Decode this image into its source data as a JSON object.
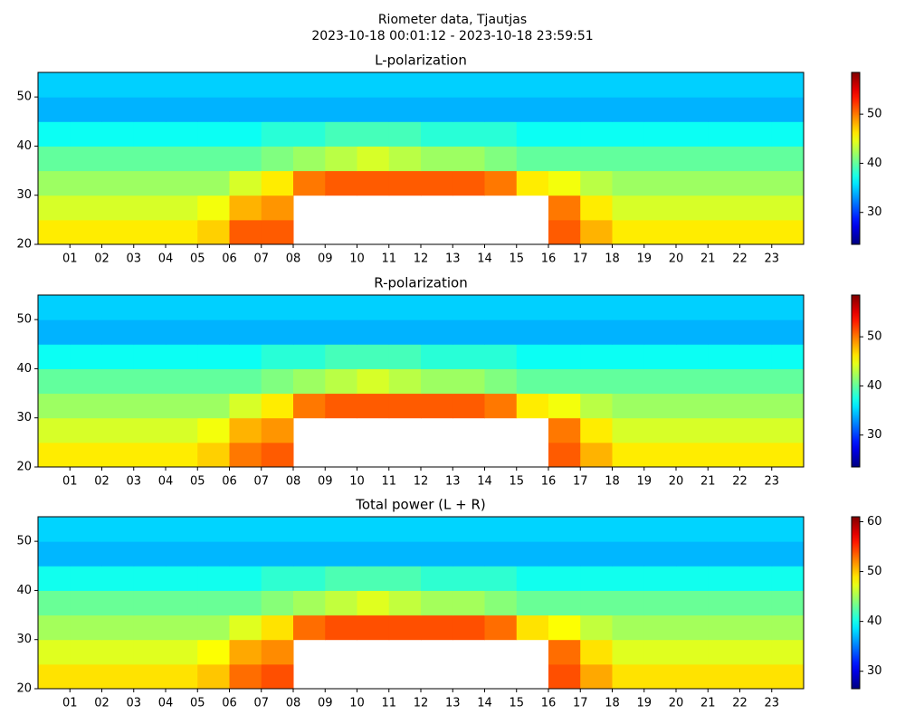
{
  "title": "Riometer data, Tjautjas",
  "subtitle": "2023-10-18 00:01:12 - 2023-10-18 23:59:51",
  "chart_data": [
    {
      "type": "heatmap",
      "title": "L-polarization",
      "colormap": "jet",
      "x": [
        0,
        1,
        2,
        3,
        4,
        5,
        6,
        7,
        8,
        9,
        10,
        11,
        12,
        13,
        14,
        15,
        16,
        17,
        18,
        19,
        20,
        21,
        22,
        23,
        24
      ],
      "y": [
        20,
        25,
        30,
        35,
        40,
        45,
        50,
        55
      ],
      "xlim": [
        0,
        24
      ],
      "ylim": [
        20,
        55
      ],
      "xticks": [
        {
          "value": 1,
          "label": "01"
        },
        {
          "value": 2,
          "label": "02"
        },
        {
          "value": 3,
          "label": "03"
        },
        {
          "value": 4,
          "label": "04"
        },
        {
          "value": 5,
          "label": "05"
        },
        {
          "value": 6,
          "label": "06"
        },
        {
          "value": 7,
          "label": "07"
        },
        {
          "value": 8,
          "label": "08"
        },
        {
          "value": 9,
          "label": "09"
        },
        {
          "value": 10,
          "label": "10"
        },
        {
          "value": 11,
          "label": "11"
        },
        {
          "value": 12,
          "label": "12"
        },
        {
          "value": 13,
          "label": "13"
        },
        {
          "value": 14,
          "label": "14"
        },
        {
          "value": 15,
          "label": "15"
        },
        {
          "value": 16,
          "label": "16"
        },
        {
          "value": 17,
          "label": "17"
        },
        {
          "value": 18,
          "label": "18"
        },
        {
          "value": 19,
          "label": "19"
        },
        {
          "value": 20,
          "label": "20"
        },
        {
          "value": 21,
          "label": "21"
        },
        {
          "value": 22,
          "label": "22"
        },
        {
          "value": 23,
          "label": "23"
        }
      ],
      "yticks": [
        20,
        30,
        40,
        50
      ],
      "clim": [
        23.5,
        58.5
      ],
      "cticks": [
        30,
        40,
        50
      ],
      "values": [
        [
          46,
          46,
          46,
          46,
          46,
          47,
          51,
          51,
          null,
          null,
          null,
          null,
          null,
          null,
          null,
          null,
          51,
          48,
          46,
          46,
          46,
          46,
          46,
          46
        ],
        [
          44,
          44,
          44,
          44,
          44,
          45,
          48,
          49,
          null,
          null,
          null,
          null,
          null,
          null,
          null,
          null,
          50,
          46,
          44,
          44,
          44,
          44,
          44,
          44
        ],
        [
          42,
          42,
          42,
          42,
          42,
          42,
          44,
          46,
          50,
          51,
          51,
          51,
          51,
          51,
          50,
          46,
          45,
          43,
          42,
          42,
          42,
          42,
          42,
          42
        ],
        [
          40,
          40,
          40,
          40,
          40,
          40,
          40,
          41,
          42,
          43,
          44,
          43,
          42,
          42,
          41,
          40,
          40,
          40,
          40,
          40,
          40,
          40,
          40,
          40
        ],
        [
          37,
          37,
          37,
          37,
          37,
          37,
          37,
          38,
          38,
          39,
          39,
          39,
          38,
          38,
          38,
          37,
          37,
          37,
          37,
          37,
          37,
          37,
          37,
          37
        ],
        [
          34,
          34,
          34,
          34,
          34,
          34,
          34,
          34,
          34,
          34,
          34,
          34,
          34,
          34,
          34,
          34,
          34,
          34,
          34,
          34,
          34,
          34,
          34,
          34
        ],
        [
          35,
          35,
          35,
          35,
          35,
          35,
          35,
          35,
          35,
          35,
          35,
          35,
          35,
          35,
          35,
          35,
          35,
          35,
          35,
          35,
          35,
          35,
          35,
          35
        ]
      ]
    },
    {
      "type": "heatmap",
      "title": "R-polarization",
      "colormap": "jet",
      "x": [
        0,
        1,
        2,
        3,
        4,
        5,
        6,
        7,
        8,
        9,
        10,
        11,
        12,
        13,
        14,
        15,
        16,
        17,
        18,
        19,
        20,
        21,
        22,
        23,
        24
      ],
      "y": [
        20,
        25,
        30,
        35,
        40,
        45,
        50,
        55
      ],
      "xlim": [
        0,
        24
      ],
      "ylim": [
        20,
        55
      ],
      "xticks": [
        {
          "value": 1,
          "label": "01"
        },
        {
          "value": 2,
          "label": "02"
        },
        {
          "value": 3,
          "label": "03"
        },
        {
          "value": 4,
          "label": "04"
        },
        {
          "value": 5,
          "label": "05"
        },
        {
          "value": 6,
          "label": "06"
        },
        {
          "value": 7,
          "label": "07"
        },
        {
          "value": 8,
          "label": "08"
        },
        {
          "value": 9,
          "label": "09"
        },
        {
          "value": 10,
          "label": "10"
        },
        {
          "value": 11,
          "label": "11"
        },
        {
          "value": 12,
          "label": "12"
        },
        {
          "value": 13,
          "label": "13"
        },
        {
          "value": 14,
          "label": "14"
        },
        {
          "value": 15,
          "label": "15"
        },
        {
          "value": 16,
          "label": "16"
        },
        {
          "value": 17,
          "label": "17"
        },
        {
          "value": 18,
          "label": "18"
        },
        {
          "value": 19,
          "label": "19"
        },
        {
          "value": 20,
          "label": "20"
        },
        {
          "value": 21,
          "label": "21"
        },
        {
          "value": 22,
          "label": "22"
        },
        {
          "value": 23,
          "label": "23"
        }
      ],
      "yticks": [
        20,
        30,
        40,
        50
      ],
      "clim": [
        23.5,
        58.5
      ],
      "cticks": [
        30,
        40,
        50
      ],
      "values": [
        [
          46,
          46,
          46,
          46,
          46,
          47,
          50,
          51,
          null,
          null,
          null,
          null,
          null,
          null,
          null,
          null,
          51,
          48,
          46,
          46,
          46,
          46,
          46,
          46
        ],
        [
          44,
          44,
          44,
          44,
          44,
          45,
          48,
          49,
          null,
          null,
          null,
          null,
          null,
          null,
          null,
          null,
          50,
          46,
          44,
          44,
          44,
          44,
          44,
          44
        ],
        [
          42,
          42,
          42,
          42,
          42,
          42,
          44,
          46,
          50,
          51,
          51,
          51,
          51,
          51,
          50,
          46,
          45,
          43,
          42,
          42,
          42,
          42,
          42,
          42
        ],
        [
          40,
          40,
          40,
          40,
          40,
          40,
          40,
          41,
          42,
          43,
          44,
          43,
          42,
          42,
          41,
          40,
          40,
          40,
          40,
          40,
          40,
          40,
          40,
          40
        ],
        [
          37,
          37,
          37,
          37,
          37,
          37,
          37,
          38,
          38,
          39,
          39,
          39,
          38,
          38,
          38,
          37,
          37,
          37,
          37,
          37,
          37,
          37,
          37,
          37
        ],
        [
          34,
          34,
          34,
          34,
          34,
          34,
          34,
          34,
          34,
          34,
          34,
          34,
          34,
          34,
          34,
          34,
          34,
          34,
          34,
          34,
          34,
          34,
          34,
          34
        ],
        [
          35,
          35,
          35,
          35,
          35,
          35,
          35,
          35,
          35,
          35,
          35,
          35,
          35,
          35,
          35,
          35,
          35,
          35,
          35,
          35,
          35,
          35,
          35,
          35
        ]
      ]
    },
    {
      "type": "heatmap",
      "title": "Total power (L + R)",
      "colormap": "jet",
      "x": [
        0,
        1,
        2,
        3,
        4,
        5,
        6,
        7,
        8,
        9,
        10,
        11,
        12,
        13,
        14,
        15,
        16,
        17,
        18,
        19,
        20,
        21,
        22,
        23,
        24
      ],
      "y": [
        20,
        25,
        30,
        35,
        40,
        45,
        50,
        55
      ],
      "xlim": [
        0,
        24
      ],
      "ylim": [
        20,
        55
      ],
      "xticks": [
        {
          "value": 1,
          "label": "01"
        },
        {
          "value": 2,
          "label": "02"
        },
        {
          "value": 3,
          "label": "03"
        },
        {
          "value": 4,
          "label": "04"
        },
        {
          "value": 5,
          "label": "05"
        },
        {
          "value": 6,
          "label": "06"
        },
        {
          "value": 7,
          "label": "07"
        },
        {
          "value": 8,
          "label": "08"
        },
        {
          "value": 9,
          "label": "09"
        },
        {
          "value": 10,
          "label": "10"
        },
        {
          "value": 11,
          "label": "11"
        },
        {
          "value": 12,
          "label": "12"
        },
        {
          "value": 13,
          "label": "13"
        },
        {
          "value": 14,
          "label": "14"
        },
        {
          "value": 15,
          "label": "15"
        },
        {
          "value": 16,
          "label": "16"
        },
        {
          "value": 17,
          "label": "17"
        },
        {
          "value": 18,
          "label": "18"
        },
        {
          "value": 19,
          "label": "19"
        },
        {
          "value": 20,
          "label": "20"
        },
        {
          "value": 21,
          "label": "21"
        },
        {
          "value": 22,
          "label": "22"
        },
        {
          "value": 23,
          "label": "23"
        }
      ],
      "yticks": [
        20,
        30,
        40,
        50
      ],
      "clim": [
        26.5,
        61
      ],
      "cticks": [
        30,
        40,
        50,
        60
      ],
      "values": [
        [
          49,
          49,
          49,
          49,
          49,
          50,
          53,
          54,
          null,
          null,
          null,
          null,
          null,
          null,
          null,
          null,
          54,
          51,
          49,
          49,
          49,
          49,
          49,
          49
        ],
        [
          47,
          47,
          47,
          47,
          47,
          48,
          51,
          52,
          null,
          null,
          null,
          null,
          null,
          null,
          null,
          null,
          53,
          49,
          47,
          47,
          47,
          47,
          47,
          47
        ],
        [
          45,
          45,
          45,
          45,
          45,
          45,
          47,
          49,
          53,
          54,
          54,
          54,
          54,
          54,
          53,
          49,
          48,
          46,
          45,
          45,
          45,
          45,
          45,
          45
        ],
        [
          43,
          43,
          43,
          43,
          43,
          43,
          43,
          44,
          45,
          46,
          47,
          46,
          45,
          45,
          44,
          43,
          43,
          43,
          43,
          43,
          43,
          43,
          43,
          43
        ],
        [
          40,
          40,
          40,
          40,
          40,
          40,
          40,
          41,
          41,
          42,
          42,
          42,
          41,
          41,
          41,
          40,
          40,
          40,
          40,
          40,
          40,
          40,
          40,
          40
        ],
        [
          37,
          37,
          37,
          37,
          37,
          37,
          37,
          37,
          37,
          37,
          37,
          37,
          37,
          37,
          37,
          37,
          37,
          37,
          37,
          37,
          37,
          37,
          37,
          37
        ],
        [
          38,
          38,
          38,
          38,
          38,
          38,
          38,
          38,
          38,
          38,
          38,
          38,
          38,
          38,
          38,
          38,
          38,
          38,
          38,
          38,
          38,
          38,
          38,
          38
        ]
      ]
    }
  ]
}
